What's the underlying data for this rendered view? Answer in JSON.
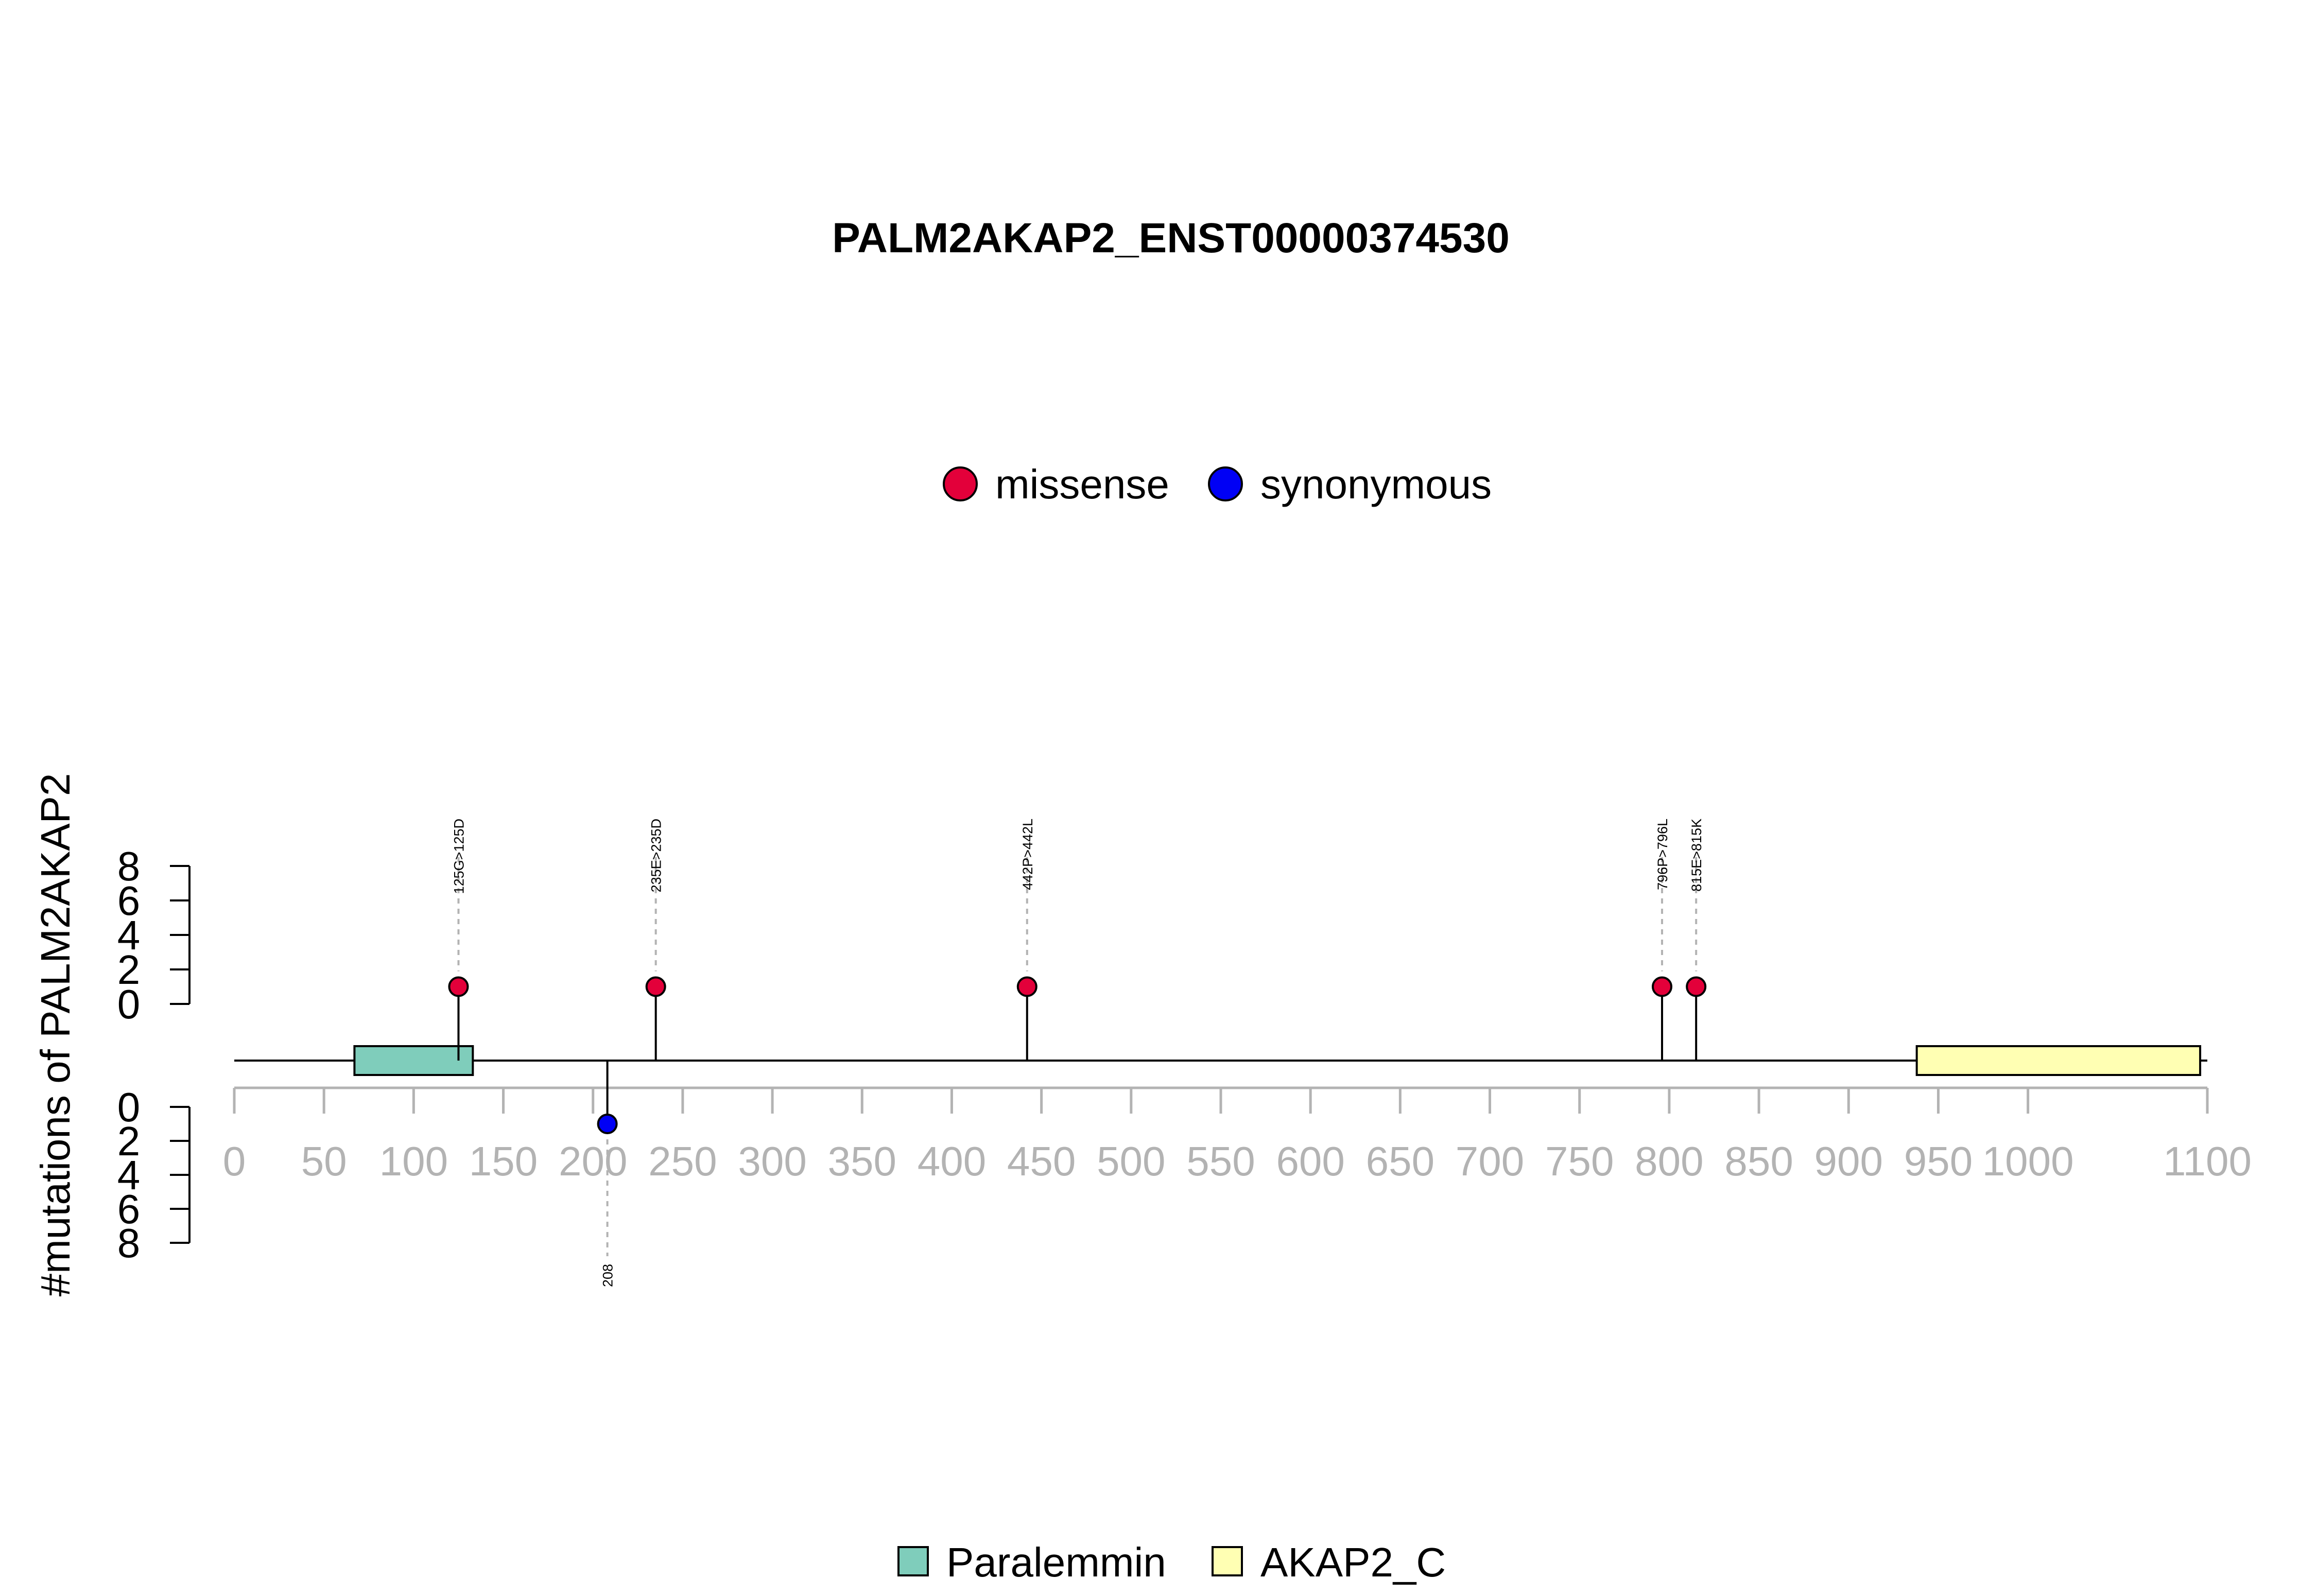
{
  "chart_data": {
    "type": "lollipop",
    "title": "PALM2AKAP2_ENST00000374530",
    "ylabel": "#mutations of PALM2AKAP2",
    "protein_length": 1100,
    "x_ticks": [
      0,
      50,
      100,
      150,
      200,
      250,
      300,
      350,
      400,
      450,
      500,
      550,
      600,
      650,
      700,
      750,
      800,
      850,
      900,
      950,
      1000,
      1100
    ],
    "x_tick_labels": [
      "0",
      "50",
      "100",
      "150",
      "200",
      "250",
      "300",
      "350",
      "400",
      "450",
      "500",
      "550",
      "600",
      "650",
      "700",
      "750",
      "800",
      "850",
      "900",
      "950",
      "1000",
      "1100"
    ],
    "y_ticks_top": [
      0,
      2,
      4,
      6,
      8
    ],
    "y_ticks_bottom": [
      0,
      2,
      4,
      6,
      8
    ],
    "y_tick_labels": [
      "0",
      "2",
      "4",
      "6",
      "8"
    ],
    "ylim": [
      0,
      8
    ],
    "mutation_legend": [
      {
        "name": "missense",
        "color": "#e3003a"
      },
      {
        "name": "synonymous",
        "color": "#0000f5"
      }
    ],
    "domain_legend": [
      {
        "name": "Paralemmin",
        "color": "#7fcdbb"
      },
      {
        "name": "AKAP2_C",
        "color": "#ffffb3"
      }
    ],
    "domains": [
      {
        "name": "Paralemmin",
        "start": 67,
        "end": 133,
        "color": "#7fcdbb"
      },
      {
        "name": "AKAP2_C",
        "start": 938,
        "end": 1096,
        "color": "#ffffb3"
      }
    ],
    "mutations_top": [
      {
        "position": 125,
        "count": 1,
        "label": "125G>125D",
        "type": "missense"
      },
      {
        "position": 235,
        "count": 1,
        "label": "235E>235D",
        "type": "missense"
      },
      {
        "position": 442,
        "count": 1,
        "label": "442P>442L",
        "type": "missense"
      },
      {
        "position": 796,
        "count": 1,
        "label": "796P>796L",
        "type": "missense"
      },
      {
        "position": 815,
        "count": 1,
        "label": "815E>815K",
        "type": "missense"
      }
    ],
    "mutations_bottom": [
      {
        "position": 208,
        "count": 1,
        "label": "208",
        "type": "synonymous"
      }
    ]
  }
}
